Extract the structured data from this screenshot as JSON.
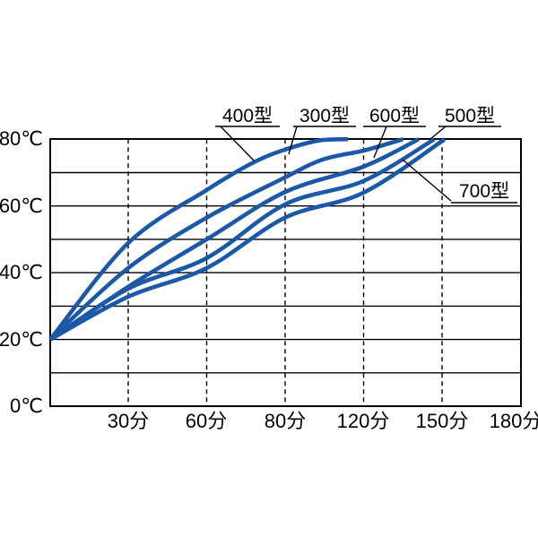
{
  "chart_data": {
    "type": "line",
    "title": "",
    "x_axis": {
      "unit": "分",
      "tick_labels": [
        "30分",
        "60分",
        "80分",
        "120分",
        "150分",
        "180分"
      ],
      "tick_minutes": [
        30,
        60,
        80,
        120,
        150,
        180
      ]
    },
    "y_axis": {
      "unit": "℃",
      "tick_labels": [
        "80℃",
        "60℃",
        "40℃",
        "20℃",
        "0℃"
      ],
      "tick_values": [
        80,
        60,
        40,
        20,
        0
      ],
      "min": 0,
      "max": 80,
      "gridline_step": 10,
      "grid": true
    },
    "start_temp_c": 20,
    "line_color": "#1b59a8",
    "axis_color": "#000000",
    "legend_position": "callout-labels-top",
    "series": [
      {
        "name": "400型",
        "points": [
          [
            0,
            20
          ],
          [
            30,
            48.9
          ],
          [
            60,
            64.8
          ],
          [
            72,
            73.1
          ],
          [
            80,
            76.9
          ],
          [
            97,
            79.6
          ],
          [
            112,
            80
          ]
        ]
      },
      {
        "name": "300型",
        "points": [
          [
            0,
            20
          ],
          [
            30,
            41.4
          ],
          [
            60,
            56.5
          ],
          [
            79,
            68.0
          ],
          [
            99,
            73.9
          ],
          [
            120,
            76.6
          ],
          [
            135,
            80
          ]
        ]
      },
      {
        "name": "600型",
        "points": [
          [
            0,
            20
          ],
          [
            30,
            35.8
          ],
          [
            60,
            50.0
          ],
          [
            80,
            64.2
          ],
          [
            120,
            71.8
          ],
          [
            141,
            80
          ]
        ]
      },
      {
        "name": "500型",
        "points": [
          [
            0,
            20
          ],
          [
            30,
            35.2
          ],
          [
            60,
            44.4
          ],
          [
            80,
            60.5
          ],
          [
            120,
            67.5
          ],
          [
            147,
            80
          ]
        ]
      },
      {
        "name": "700型",
        "points": [
          [
            0,
            20
          ],
          [
            30,
            32.8
          ],
          [
            60,
            41.4
          ],
          [
            80,
            56.5
          ],
          [
            120,
            64.0
          ],
          [
            151,
            80
          ]
        ]
      }
    ]
  }
}
